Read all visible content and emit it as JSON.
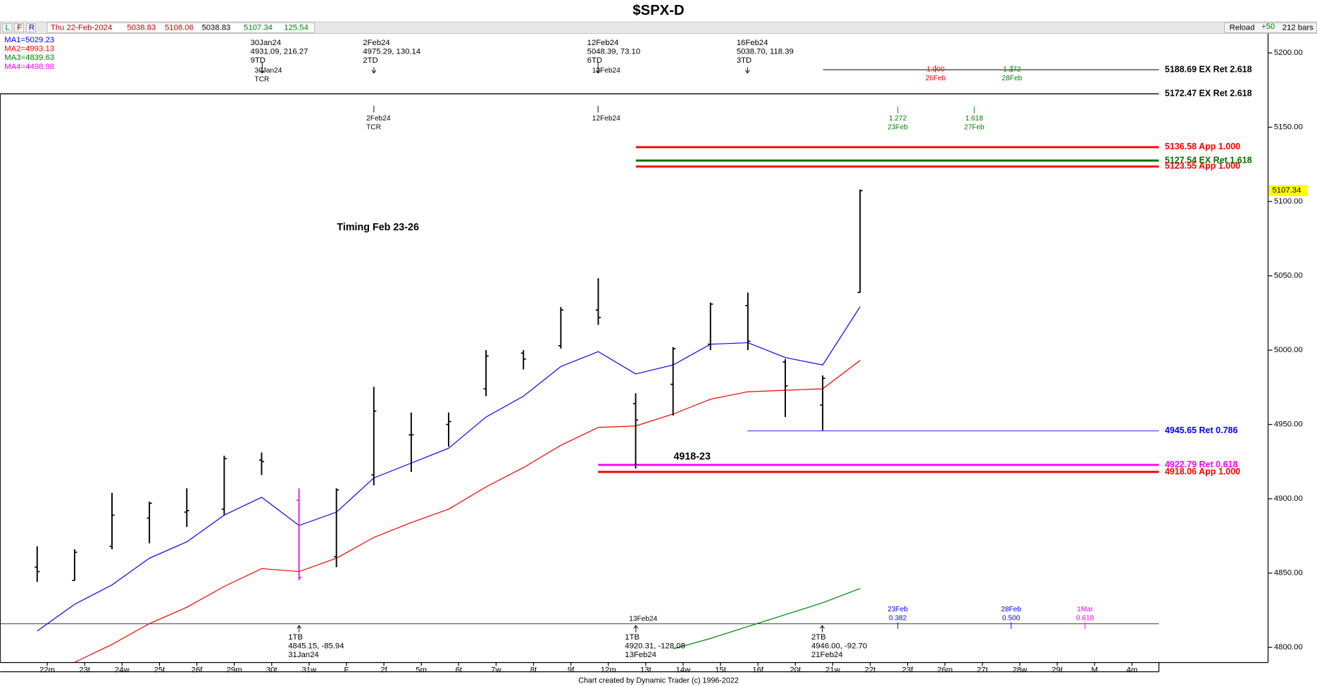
{
  "title": "$SPX-D",
  "toolbar": {
    "buttons": [
      "L",
      "F",
      "R"
    ],
    "date": "Thu 22-Feb-2024",
    "quote": [
      "5038.83",
      "5108.06",
      "5038.83",
      "5107.34",
      "125.54"
    ],
    "reload": "Reload",
    "step": "+50",
    "bars": "212 bars"
  },
  "footer": "Chart created by Dynamic Trader  (c) 1996-2022",
  "chart_data": {
    "type": "ohlc",
    "categories": [
      "22m",
      "23t",
      "24w",
      "25t",
      "26f",
      "29m",
      "30t",
      "31w",
      "F",
      "2f",
      "5m",
      "6t",
      "7w",
      "8t",
      "9f",
      "12m",
      "13t",
      "14w",
      "15t",
      "16f",
      "20t",
      "21w",
      "22t",
      "23f",
      "26m",
      "27t",
      "28w",
      "29t",
      "M",
      "4m"
    ],
    "open": [
      4854,
      4845,
      4868,
      4887,
      4891,
      4893,
      4926,
      4899,
      4861,
      4916,
      4943,
      4950,
      4974,
      4998,
      5003,
      5027,
      4964,
      4977,
      5004,
      5030,
      4992,
      4963,
      5038.83,
      null,
      null,
      null,
      null,
      null,
      null,
      null
    ],
    "high": [
      4868,
      4866,
      4904,
      4898,
      4907,
      4929,
      4931.09,
      4907,
      4907,
      4975.29,
      4958,
      4958,
      5000,
      5000,
      5029,
      5048.39,
      4971,
      5002,
      5032,
      5038.7,
      4994,
      4983,
      5108.06,
      null,
      null,
      null,
      null,
      null,
      null,
      null
    ],
    "low": [
      4844,
      4845,
      4866,
      4870,
      4881,
      4889,
      4916,
      4845.15,
      4854,
      4909,
      4918,
      4935,
      4969,
      4987,
      5001,
      5017,
      4920.31,
      4956,
      5000,
      5000,
      4955,
      4946.0,
      5038.83,
      null,
      null,
      null,
      null,
      null,
      null,
      null
    ],
    "close": [
      4851,
      4864,
      4889,
      4897,
      4892,
      4927,
      4925,
      4847,
      4906,
      4959,
      4943,
      4952,
      4996,
      4994,
      5027,
      5022,
      4953,
      5001,
      5031,
      5006,
      4976,
      4981,
      5107.34,
      null,
      null,
      null,
      null,
      null,
      null,
      null
    ],
    "bar_color": "#000000",
    "highlight_bar": "31w",
    "highlight_color": "#e020e0",
    "moving_averages": [
      {
        "legend": "MA1=5029.23",
        "color": "#0000ff",
        "values": [
          4811,
          4829,
          4842,
          4860,
          4871,
          4889,
          4901,
          4882,
          4891,
          4914,
          4924,
          4934,
          4955,
          4969,
          4989,
          4999,
          4984,
          4990,
          5004,
          5005,
          4995,
          4990,
          5029.23,
          null,
          null,
          null,
          null,
          null,
          null,
          null
        ]
      },
      {
        "legend": "MA2=4993.13",
        "color": "#ff0000",
        "values": [
          null,
          4790,
          4802,
          4816,
          4827,
          4841,
          4853,
          4851,
          4860,
          4874,
          4884,
          4893,
          4908,
          4921,
          4936,
          4948,
          4949,
          4957,
          4967,
          4972,
          4973,
          4974,
          4993.13,
          null,
          null,
          null,
          null,
          null,
          null,
          null
        ]
      },
      {
        "legend": "MA3=4839.63",
        "color": "#008000",
        "values": [
          null,
          null,
          null,
          null,
          null,
          null,
          null,
          null,
          null,
          null,
          null,
          null,
          null,
          null,
          null,
          null,
          null,
          4799,
          4806,
          4814,
          4822,
          4830,
          4839.63,
          null,
          null,
          null,
          null,
          null,
          null,
          null
        ]
      },
      {
        "legend": "MA4=4498.98",
        "color": "#ff00ff"
      }
    ],
    "levels": [
      {
        "value": 5188.69,
        "label": "5188.69 EX Ret 2.618",
        "color": "#000000"
      },
      {
        "value": 5172.47,
        "label": "5172.47 EX Ret 2.618",
        "color": "#000000"
      },
      {
        "value": 5136.58,
        "label": "5136.58 App 1.000",
        "color": "#ff0000"
      },
      {
        "value": 5127.54,
        "label": "5127.54 EX Ret 1.618",
        "color": "#007000"
      },
      {
        "value": 5123.55,
        "label": "5123.55 App 1.000",
        "color": "#ff0000"
      },
      {
        "value": 4945.65,
        "label": "4945.65 Ret 0.786",
        "color": "#0000ff"
      },
      {
        "value": 4922.79,
        "label": "4922.79 Ret 0.618",
        "color": "#ff00ff"
      },
      {
        "value": 4918.06,
        "label": "4918.06 App 1.000",
        "color": "#ff0000"
      }
    ],
    "last_price": {
      "value": 5107.34,
      "label": "5107.34"
    },
    "ylim": [
      4790,
      5213
    ],
    "yticks": [
      {
        "value": 4800,
        "label": "4800.00"
      },
      {
        "value": 4850,
        "label": "4850.00"
      },
      {
        "value": 4900,
        "label": "4900.00"
      },
      {
        "value": 4950,
        "label": "4950.00"
      },
      {
        "value": 5000,
        "label": "5000.00"
      },
      {
        "value": 5050,
        "label": "5050.00"
      },
      {
        "value": 5100,
        "label": "5100.00"
      },
      {
        "value": 5150,
        "label": "5150.00"
      },
      {
        "value": 5200,
        "label": "5200.00"
      }
    ],
    "annotations": [
      "Timing Feb 23-26",
      "4918-23"
    ],
    "pivots_top": [
      {
        "lines": [
          "30Jan24",
          "4931.09, 216.27",
          "9TD"
        ]
      },
      {
        "lines": [
          "2Feb24",
          "4975.29, 130.14",
          "2TD"
        ]
      },
      {
        "lines": [
          "12Feb24",
          "5048.39, 73.10",
          "6TD"
        ]
      },
      {
        "lines": [
          "16Feb24",
          "5038.70, 118.39",
          "3TD"
        ]
      }
    ],
    "cycle_markers": [
      {
        "lines": [
          "30Jan24",
          "TCR"
        ]
      },
      {
        "lines": [
          "12Feb24"
        ]
      },
      {
        "lines": [
          "2Feb24",
          "TCR"
        ]
      },
      {
        "lines": [
          "12Feb24"
        ]
      },
      {
        "lines": [
          "13Feb24"
        ]
      }
    ],
    "time_targets": [
      {
        "lines": [
          "1.000",
          "26Feb"
        ],
        "color": "#ff0000"
      },
      {
        "lines": [
          "1.272",
          "28Feb"
        ],
        "color": "#008000"
      },
      {
        "lines": [
          "1.272",
          "23Feb"
        ],
        "color": "#008000"
      },
      {
        "lines": [
          "1.618",
          "27Feb"
        ],
        "color": "#008000"
      },
      {
        "lines": [
          "23Feb",
          "0.382"
        ],
        "color": "#0000ff"
      },
      {
        "lines": [
          "28Feb",
          "0.500"
        ],
        "color": "#0000ff"
      },
      {
        "lines": [
          "1Mar",
          "0.618"
        ],
        "color": "#ff00ff"
      }
    ],
    "pivots_bottom": [
      {
        "lines": [
          "1TB",
          "4845.15, -85.94",
          "31Jan24"
        ]
      },
      {
        "lines": [
          "1TB",
          "4920.31, -128.08",
          "13Feb24"
        ]
      },
      {
        "lines": [
          "2TB",
          "4946.00, -92.70",
          "21Feb24"
        ]
      }
    ]
  }
}
